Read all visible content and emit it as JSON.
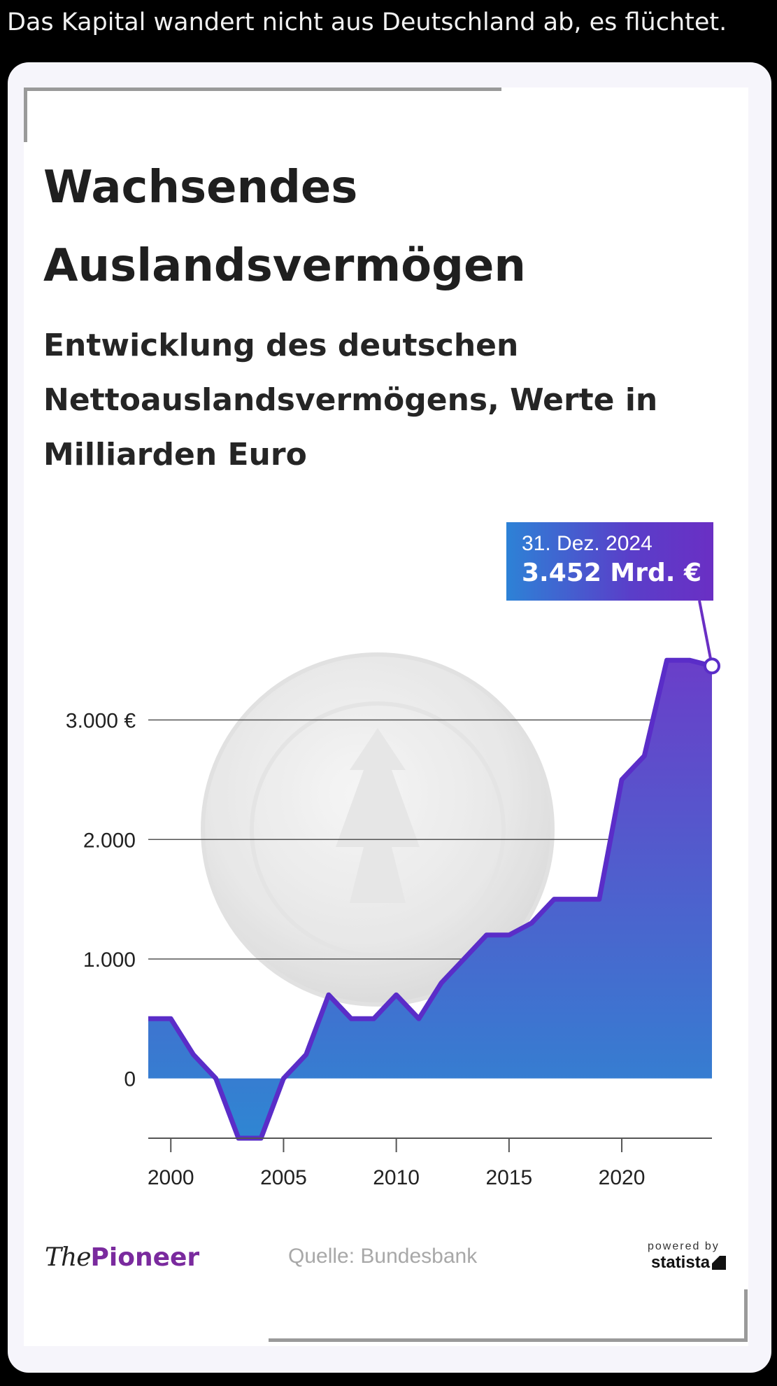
{
  "post": {
    "text": "Das Kapital wandert nicht aus Deutschland ab, es flüchtet."
  },
  "infographic": {
    "title_line1": "Wachsendes",
    "title_line2": "Auslandsvermögen",
    "subtitle_line1": "Entwicklung des deutschen",
    "subtitle_line2": "Nettoauslandsvermögens, Werte in",
    "subtitle_line3": "Milliarden Euro",
    "annotation": {
      "date": "31. Dez. 2024",
      "value": "3.452 Mrd. €"
    },
    "logo": {
      "the": "The",
      "pioneer": "Pioneer"
    },
    "source": "Quelle: Bundesbank",
    "powered_by": "powered by",
    "statista": "statista"
  },
  "chart_data": {
    "type": "area",
    "title": "Wachsendes Auslandsvermögen",
    "subtitle": "Entwicklung des deutschen Nettoauslandsvermögens, Werte in Milliarden Euro",
    "x": [
      1999,
      2000,
      2001,
      2002,
      2003,
      2004,
      2005,
      2006,
      2007,
      2008,
      2009,
      2010,
      2011,
      2012,
      2013,
      2014,
      2015,
      2016,
      2017,
      2018,
      2019,
      2020,
      2021,
      2022,
      2023,
      2024
    ],
    "series": [
      {
        "values": [
          500,
          500,
          200,
          0,
          -500,
          -500,
          0,
          200,
          700,
          500,
          500,
          700,
          500,
          800,
          1000,
          1200,
          1200,
          1300,
          1500,
          1500,
          1500,
          2500,
          2700,
          3500,
          3500,
          3452
        ]
      }
    ],
    "xticks": [
      2000,
      2005,
      2010,
      2015,
      2020
    ],
    "xtick_labels": [
      "2000",
      "2005",
      "2010",
      "2015",
      "2020"
    ],
    "yticks": [
      0,
      1000,
      2000,
      3000
    ],
    "ytick_labels": [
      "0",
      "1.000",
      "2.000",
      "3.000 €"
    ],
    "xlim": [
      1999,
      2024
    ],
    "ylim": [
      -500,
      3800
    ],
    "grid": true,
    "legend": "none",
    "colors": {
      "line": "#5a2dc8",
      "fill_top": "#6a3ec9",
      "fill_bottom": "#2f86d2",
      "grid": "#555555"
    },
    "annotation_point": {
      "x": 2024,
      "y": 3452
    }
  }
}
